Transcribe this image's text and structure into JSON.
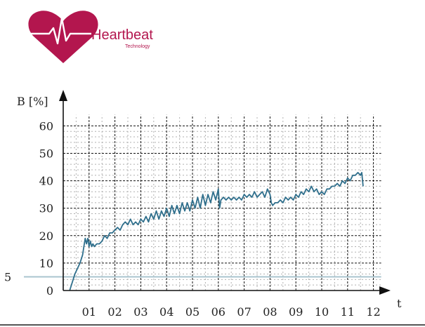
{
  "logo": {
    "name": "Heartbeat",
    "subtitle": "Technology",
    "colors": {
      "heart": "#b3164e",
      "pulse": "#ffffff"
    }
  },
  "chart_data": {
    "type": "line",
    "title": "",
    "ylabel": "B [%]",
    "xlabel": "t",
    "ylim": [
      0,
      60
    ],
    "xlim": [
      0,
      12
    ],
    "y_ticks": [
      0,
      10,
      20,
      30,
      40,
      50,
      60
    ],
    "x_tick_labels": [
      "01",
      "02",
      "03",
      "04",
      "05",
      "06",
      "07",
      "08",
      "09",
      "10",
      "11",
      "12"
    ],
    "threshold": {
      "value": 5,
      "label": "5",
      "color": "#a9c4cf"
    },
    "series": [
      {
        "name": "B",
        "color": "#2f6f8c",
        "x": [
          0.25,
          0.35,
          0.45,
          0.55,
          0.65,
          0.75,
          0.8,
          0.85,
          0.9,
          0.95,
          1.0,
          1.05,
          1.1,
          1.15,
          1.2,
          1.3,
          1.4,
          1.5,
          1.6,
          1.7,
          1.8,
          1.9,
          2.0,
          2.1,
          2.2,
          2.3,
          2.4,
          2.5,
          2.6,
          2.7,
          2.8,
          2.9,
          3.0,
          3.1,
          3.2,
          3.3,
          3.4,
          3.5,
          3.6,
          3.7,
          3.8,
          3.9,
          4.0,
          4.1,
          4.2,
          4.3,
          4.4,
          4.5,
          4.6,
          4.7,
          4.8,
          4.9,
          5.0,
          5.1,
          5.2,
          5.3,
          5.4,
          5.5,
          5.6,
          5.7,
          5.8,
          5.9,
          6.0,
          6.05,
          6.1,
          6.2,
          6.3,
          6.4,
          6.5,
          6.6,
          6.7,
          6.8,
          6.9,
          7.0,
          7.1,
          7.2,
          7.3,
          7.4,
          7.5,
          7.6,
          7.7,
          7.8,
          7.9,
          8.0,
          8.05,
          8.1,
          8.2,
          8.3,
          8.4,
          8.5,
          8.6,
          8.7,
          8.8,
          8.9,
          9.0,
          9.1,
          9.2,
          9.3,
          9.4,
          9.5,
          9.6,
          9.7,
          9.8,
          9.9,
          10.0,
          10.1,
          10.2,
          10.3,
          10.4,
          10.5,
          10.6,
          10.7,
          10.8,
          10.9,
          11.0,
          11.1,
          11.2,
          11.3,
          11.4,
          11.5,
          11.55,
          11.6
        ],
        "values": [
          0,
          3,
          6,
          8,
          10,
          13,
          16,
          19,
          17,
          19,
          16,
          18,
          16,
          17,
          16,
          17,
          17,
          18,
          20,
          19,
          21,
          21,
          22,
          23,
          22,
          24,
          25,
          24,
          26,
          24,
          25,
          24,
          26,
          25,
          27,
          25,
          28,
          26,
          29,
          26,
          29,
          27,
          30,
          27,
          31,
          28,
          31,
          28,
          32,
          29,
          32,
          29,
          33,
          30,
          34,
          30,
          35,
          31,
          35,
          32,
          36,
          33,
          37,
          30,
          33,
          34,
          33,
          34,
          33,
          34,
          33,
          34,
          33,
          35,
          34,
          35,
          34,
          36,
          34,
          35,
          36,
          34,
          37,
          35,
          32,
          31,
          32,
          32,
          33,
          32,
          34,
          33,
          34,
          33,
          35,
          34,
          36,
          35,
          37,
          36,
          38,
          36,
          37,
          35,
          36,
          35,
          37,
          37,
          38,
          38,
          39,
          38,
          40,
          39,
          41,
          40,
          42,
          42,
          43,
          42,
          43,
          38
        ]
      }
    ]
  }
}
